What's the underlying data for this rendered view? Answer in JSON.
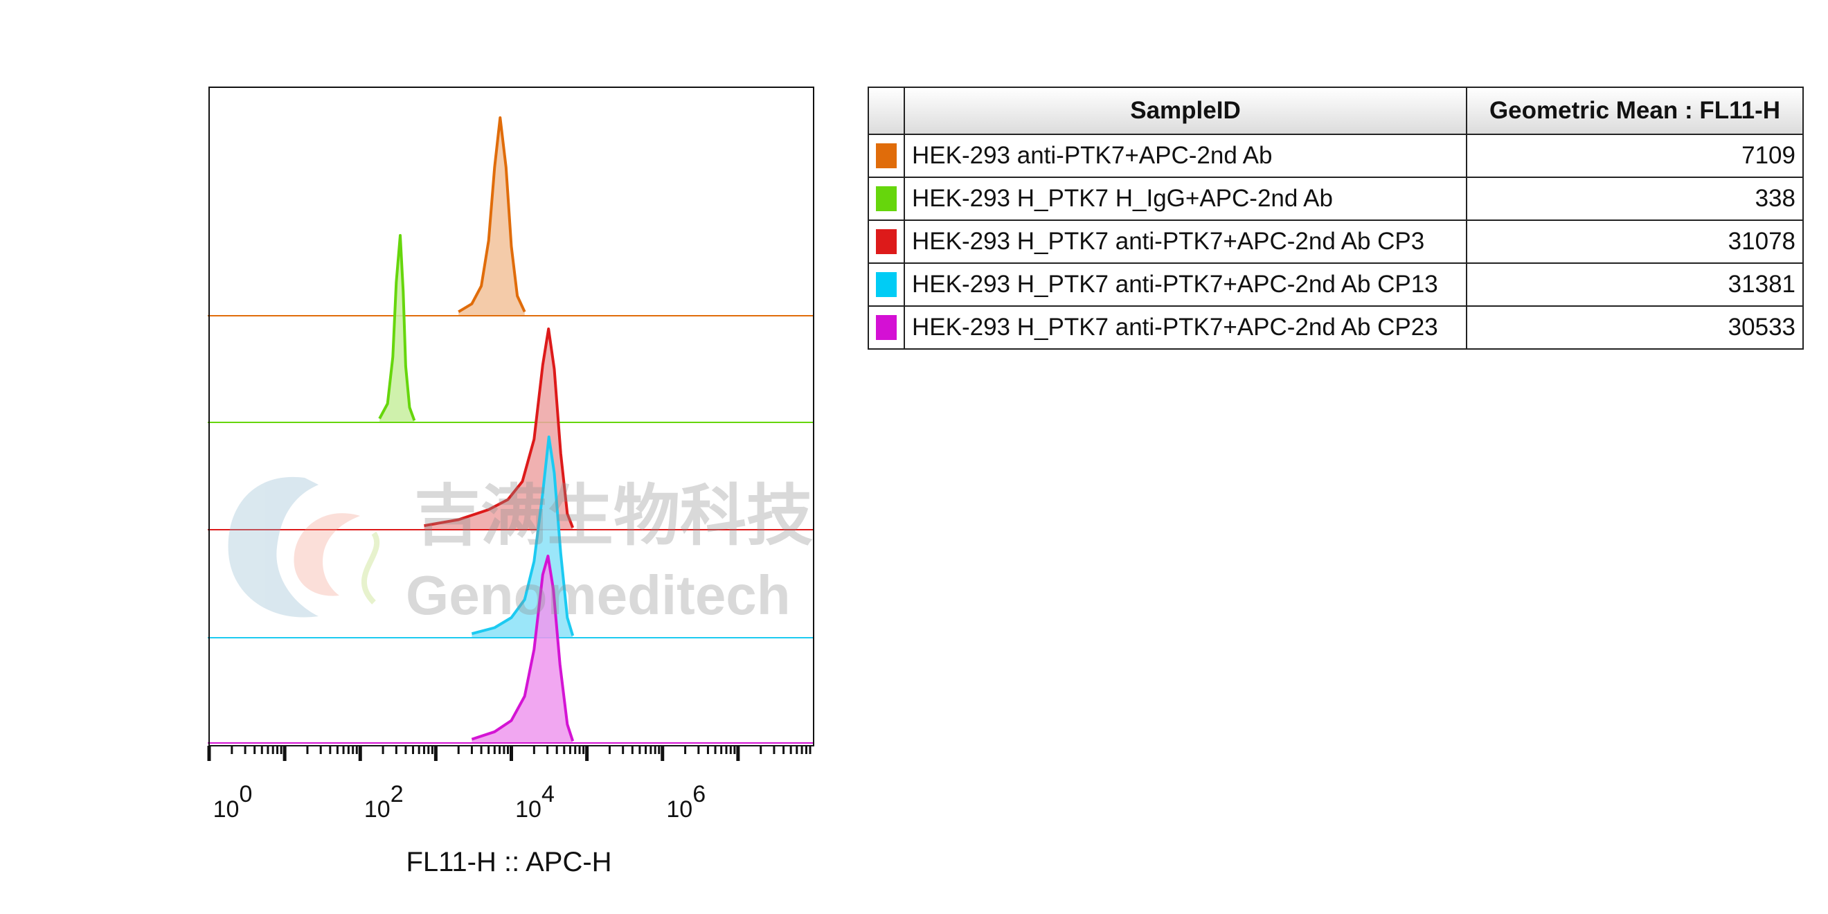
{
  "chart_data": {
    "type": "histogram_overlay",
    "xlabel": "FL11-H :: APC-H",
    "x_scale": "log",
    "xlim": [
      1,
      100000000
    ],
    "x_ticks": [
      {
        "base": "10",
        "exp": "0",
        "value": 1
      },
      {
        "base": "10",
        "exp": "2",
        "value": 100
      },
      {
        "base": "10",
        "exp": "4",
        "value": 10000
      },
      {
        "base": "10",
        "exp": "6",
        "value": 1000000
      }
    ],
    "series": [
      {
        "name": "HEK-293 anti-PTK7+APC-2nd Ab",
        "color": "#e06c0a",
        "fill": "#f2c29a",
        "peak_value": 7109,
        "x": [
          2000,
          3000,
          4000,
          5000,
          6000,
          7109,
          8500,
          10000,
          12000,
          15000
        ],
        "y": [
          0.02,
          0.06,
          0.15,
          0.38,
          0.75,
          1.0,
          0.75,
          0.35,
          0.1,
          0.02
        ]
      },
      {
        "name": "HEK-293 H_PTK7 H_IgG+APC-2nd Ab",
        "color": "#66d60c",
        "fill": "#c7ef9e",
        "peak_value": 338,
        "x": [
          180,
          230,
          270,
          300,
          338,
          370,
          400,
          450,
          520
        ],
        "y": [
          0.02,
          0.1,
          0.35,
          0.75,
          1.0,
          0.7,
          0.3,
          0.08,
          0.01
        ]
      },
      {
        "name": "HEK-293 H_PTK7 anti-PTK7+APC-2nd Ab CP3",
        "color": "#dd1a1a",
        "fill": "#eda3a3",
        "peak_value": 31078,
        "x": [
          700,
          2000,
          5000,
          9000,
          14000,
          20000,
          26000,
          31078,
          37000,
          45000,
          55000,
          65000
        ],
        "y": [
          0.02,
          0.05,
          0.1,
          0.15,
          0.24,
          0.45,
          0.82,
          1.0,
          0.8,
          0.38,
          0.08,
          0.01
        ]
      },
      {
        "name": "HEK-293 H_PTK7 anti-PTK7+APC-2nd Ab CP13",
        "color": "#1ccaf1",
        "fill": "#8ae2f8",
        "peak_value": 31381,
        "x": [
          3000,
          6000,
          10000,
          15000,
          20000,
          26000,
          31381,
          37000,
          45000,
          55000,
          65000
        ],
        "y": [
          0.02,
          0.05,
          0.1,
          0.19,
          0.38,
          0.72,
          1.0,
          0.82,
          0.42,
          0.1,
          0.01
        ]
      },
      {
        "name": "HEK-293 H_PTK7 anti-PTK7+APC-2nd Ab CP23",
        "color": "#d414d4",
        "fill": "#ee98ee",
        "peak_value": 30533,
        "x": [
          3000,
          6000,
          10000,
          15000,
          20000,
          26000,
          30533,
          36000,
          44000,
          55000,
          65000
        ],
        "y": [
          0.02,
          0.06,
          0.12,
          0.25,
          0.5,
          0.9,
          1.0,
          0.82,
          0.42,
          0.1,
          0.01
        ]
      }
    ]
  },
  "table": {
    "headers": [
      "SampleID",
      "Geometric Mean : FL11-H"
    ],
    "rows": [
      {
        "sample": "HEK-293 anti-PTK7+APC-2nd Ab",
        "value": "7109",
        "color": "#e06c0a"
      },
      {
        "sample": "HEK-293 H_PTK7 H_IgG+APC-2nd Ab",
        "value": "338",
        "color": "#66d60c"
      },
      {
        "sample": "HEK-293 H_PTK7 anti-PTK7+APC-2nd Ab CP3",
        "value": "31078",
        "color": "#dd1a1a"
      },
      {
        "sample": "HEK-293 H_PTK7 anti-PTK7+APC-2nd Ab CP13",
        "value": "31381",
        "color": "#00ccf5"
      },
      {
        "sample": "HEK-293 H_PTK7 anti-PTK7+APC-2nd Ab CP23",
        "value": "30533",
        "color": "#d410d4"
      }
    ]
  },
  "watermark": {
    "text_cn": "吉满生物科技",
    "text_en": "Genomeditech"
  }
}
